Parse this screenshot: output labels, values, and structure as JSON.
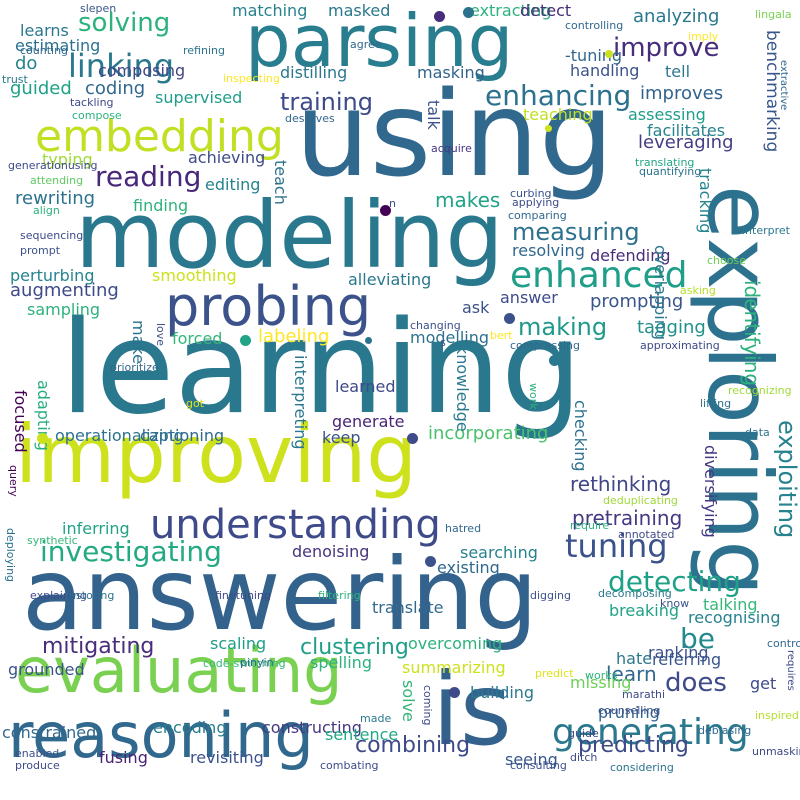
{
  "words": [
    {
      "text": "learning",
      "color": "#2a788e"
    },
    {
      "text": "using",
      "color": "#31688e"
    },
    {
      "text": "answering",
      "color": "#33638d"
    },
    {
      "text": "improving",
      "color": "#cde11d"
    },
    {
      "text": "exploring",
      "color": "#2c728e"
    },
    {
      "text": "modeling",
      "color": "#2a788e"
    },
    {
      "text": "parsing",
      "color": "#287d8e"
    },
    {
      "text": "is",
      "color": "#33638d"
    },
    {
      "text": "evaluating",
      "color": "#7ad151"
    },
    {
      "text": "reasoning",
      "color": "#31688e"
    },
    {
      "text": "probing",
      "color": "#3b528b"
    },
    {
      "text": "embedding",
      "color": "#c2df23"
    },
    {
      "text": "understanding",
      "color": "#3e4a89"
    },
    {
      "text": "enhanced",
      "color": "#1f9e89"
    },
    {
      "text": "investigating",
      "color": "#23a983"
    },
    {
      "text": "generating",
      "color": "#2a788e"
    },
    {
      "text": "tuning",
      "color": "#3b528b"
    },
    {
      "text": "linking",
      "color": "#2a788e"
    },
    {
      "text": "enhancing",
      "color": "#2c728e"
    },
    {
      "text": "reading",
      "color": "#482878"
    },
    {
      "text": "detecting",
      "color": "#1fa187"
    },
    {
      "text": "exploiting",
      "color": "#26828e"
    },
    {
      "text": "solving",
      "color": "#2db27d"
    },
    {
      "text": "improve",
      "color": "#472d7b"
    },
    {
      "text": "does",
      "color": "#3e4a89"
    },
    {
      "text": "be",
      "color": "#238a8d"
    },
    {
      "text": "making",
      "color": "#1f9a8a"
    },
    {
      "text": "measuring",
      "color": "#2c728e"
    },
    {
      "text": "training",
      "color": "#3e4a89"
    },
    {
      "text": "combining",
      "color": "#3e4a89"
    },
    {
      "text": "predicting",
      "color": "#3e4a89"
    },
    {
      "text": "mitigating",
      "color": "#472d7b"
    },
    {
      "text": "rethinking",
      "color": "#404688"
    },
    {
      "text": "pretraining",
      "color": "#443983"
    },
    {
      "text": "identifying",
      "color": "#2db27d"
    },
    {
      "text": "clustering",
      "color": "#1f9e89"
    },
    {
      "text": "benchmarking",
      "color": "#39568c"
    },
    {
      "text": "makes",
      "color": "#20a386"
    },
    {
      "text": "learn",
      "color": "#31688e"
    },
    {
      "text": "analyzing",
      "color": "#2a788e"
    },
    {
      "text": "improves",
      "color": "#33638d"
    },
    {
      "text": "leveraging",
      "color": "#433e85"
    },
    {
      "text": "guided",
      "color": "#1fa188"
    },
    {
      "text": "coding",
      "color": "#31688e"
    },
    {
      "text": "rewriting",
      "color": "#2c728e"
    },
    {
      "text": "augmenting",
      "color": "#3e4a89"
    },
    {
      "text": "prompting",
      "color": "#39568c"
    },
    {
      "text": "tagging",
      "color": "#21918c"
    },
    {
      "text": "denoising",
      "color": "#46337e"
    },
    {
      "text": "do",
      "color": "#26828e"
    },
    {
      "text": "teach",
      "color": "#2c728e"
    },
    {
      "text": "talk",
      "color": "#3b528b"
    },
    {
      "text": "assessing",
      "color": "#1f9e89"
    },
    {
      "text": "incorporating",
      "color": "#4ac16d"
    },
    {
      "text": "labeling",
      "color": "#fde725"
    },
    {
      "text": "adapting",
      "color": "#29af7f"
    },
    {
      "text": "masking",
      "color": "#33638d"
    },
    {
      "text": "distilling",
      "color": "#2a788e"
    },
    {
      "text": "supervised",
      "color": "#1f9e89"
    },
    {
      "text": "editing",
      "color": "#26828e"
    },
    {
      "text": "finding",
      "color": "#2db27d"
    },
    {
      "text": "ask",
      "color": "#3b528b"
    },
    {
      "text": "answer",
      "color": "#3e4a89"
    },
    {
      "text": "defending",
      "color": "#472d7b"
    },
    {
      "text": "overlapping",
      "color": "#2a788e"
    },
    {
      "text": "tracking",
      "color": "#25858e"
    },
    {
      "text": "breaking",
      "color": "#20a386"
    },
    {
      "text": "recognising",
      "color": "#26828e"
    },
    {
      "text": "scaling",
      "color": "#1f9e89"
    },
    {
      "text": "diversifying",
      "color": "#453882"
    },
    {
      "text": "referring",
      "color": "#39568c"
    },
    {
      "text": "get",
      "color": "#3e4a89"
    },
    {
      "text": "hate",
      "color": "#2a788e"
    },
    {
      "text": "summarizing",
      "color": "#cde11d"
    },
    {
      "text": "spelling",
      "color": "#2db27d"
    },
    {
      "text": "ranking",
      "color": "#3b528b"
    },
    {
      "text": "talking",
      "color": "#35b779"
    },
    {
      "text": "building",
      "color": "#2a788e"
    },
    {
      "text": "missing",
      "color": "#6ece58"
    },
    {
      "text": "pruning",
      "color": "#33638d"
    },
    {
      "text": "searching",
      "color": "#26828e"
    },
    {
      "text": "existing",
      "color": "#31688e"
    },
    {
      "text": "inferring",
      "color": "#20a386"
    },
    {
      "text": "solve",
      "color": "#35b779"
    },
    {
      "text": "fusing",
      "color": "#482475"
    },
    {
      "text": "revisiting",
      "color": "#3b528b"
    },
    {
      "text": "overcoming",
      "color": "#2db27d"
    },
    {
      "text": "constructing",
      "color": "#453882"
    },
    {
      "text": "sentence",
      "color": "#22a884"
    },
    {
      "text": "seeing",
      "color": "#39568c"
    },
    {
      "text": "encoding",
      "color": "#287d8e"
    },
    {
      "text": "constrained",
      "color": "#31688e"
    },
    {
      "text": "grounded",
      "color": "#3b528b"
    },
    {
      "text": "smoothing",
      "color": "#cde11d"
    },
    {
      "text": "alleviating",
      "color": "#2a788e"
    },
    {
      "text": "captioning",
      "color": "#31688e"
    },
    {
      "text": "operationalizing",
      "color": "#2c728e"
    },
    {
      "text": "sampling",
      "color": "#2db27d"
    },
    {
      "text": "perturbing",
      "color": "#25848e"
    },
    {
      "text": "focused",
      "color": "#440154"
    },
    {
      "text": "interpreting",
      "color": "#2a788e"
    },
    {
      "text": "knowledge",
      "color": "#2a788e"
    },
    {
      "text": "checking",
      "color": "#2c728e"
    },
    {
      "text": "modelling",
      "color": "#2c728e"
    },
    {
      "text": "generate",
      "color": "#482475"
    },
    {
      "text": "keep",
      "color": "#3b528b"
    },
    {
      "text": "learned",
      "color": "#3e4a89"
    },
    {
      "text": "make",
      "color": "#2c728e"
    },
    {
      "text": "forced",
      "color": "#35b779"
    },
    {
      "text": "-tuning",
      "color": "#31688e"
    },
    {
      "text": "tell",
      "color": "#2a788e"
    },
    {
      "text": "handling",
      "color": "#3b528b"
    },
    {
      "text": "teaching",
      "color": "#c2df23"
    },
    {
      "text": "facilitates",
      "color": "#25848e"
    },
    {
      "text": "resolving",
      "color": "#31688e"
    },
    {
      "text": "typing",
      "color": "#a0da39"
    },
    {
      "text": "achieving",
      "color": "#3e4a89"
    },
    {
      "text": "composing",
      "color": "#414487"
    },
    {
      "text": "estimating",
      "color": "#2c728e"
    },
    {
      "text": "learns",
      "color": "#2a788e"
    },
    {
      "text": "matching",
      "color": "#26828e"
    },
    {
      "text": "masked",
      "color": "#2a788e"
    },
    {
      "text": "extracting",
      "color": "#2db27d"
    },
    {
      "text": "detect",
      "color": "#472d7b"
    },
    {
      "text": "controlling",
      "color": "#31688e"
    },
    {
      "text": "lingala",
      "color": "#7ad151"
    },
    {
      "text": "slepen",
      "color": "#39568c"
    },
    {
      "text": "refining",
      "color": "#2c728e"
    },
    {
      "text": "counting",
      "color": "#31688e"
    },
    {
      "text": "trust",
      "color": "#2a788e"
    },
    {
      "text": "tackling",
      "color": "#3e4a89"
    },
    {
      "text": "inspecting",
      "color": "#fde725"
    },
    {
      "text": "compose",
      "color": "#2db27d"
    },
    {
      "text": "deserves",
      "color": "#31688e"
    },
    {
      "text": "generationusing",
      "color": "#3e4a89"
    },
    {
      "text": "attending",
      "color": "#5ec962"
    },
    {
      "text": "acquire",
      "color": "#453882"
    },
    {
      "text": "align",
      "color": "#2db27d"
    },
    {
      "text": "curbing",
      "color": "#3b528b"
    },
    {
      "text": "applying",
      "color": "#3e4a89"
    },
    {
      "text": "comparing",
      "color": "#31688e"
    },
    {
      "text": "translating",
      "color": "#22a884"
    },
    {
      "text": "quantifying",
      "color": "#2c728e"
    },
    {
      "text": "agree",
      "color": "#31688e"
    },
    {
      "text": "imply",
      "color": "#fde725"
    },
    {
      "text": "extractive",
      "color": "#31688e"
    },
    {
      "text": "sequencing",
      "color": "#3e4a89"
    },
    {
      "text": "prompt",
      "color": "#3b528b"
    },
    {
      "text": "interpret",
      "color": "#2a788e"
    },
    {
      "text": "choose",
      "color": "#6ece58"
    },
    {
      "text": "asking",
      "color": "#b5de2b"
    },
    {
      "text": "love",
      "color": "#3e4a89"
    },
    {
      "text": "changing",
      "color": "#3b528b"
    },
    {
      "text": "bert",
      "color": "#fde725"
    },
    {
      "text": "compressing",
      "color": "#31688e"
    },
    {
      "text": "approximating",
      "color": "#3e4a89"
    },
    {
      "text": "recognizing",
      "color": "#a0da39"
    },
    {
      "text": "lifting",
      "color": "#2c728e"
    },
    {
      "text": "work",
      "color": "#2db27d"
    },
    {
      "text": "got",
      "color": "#dde318"
    },
    {
      "text": "data",
      "color": "#2c728e"
    },
    {
      "text": "query",
      "color": "#440154"
    },
    {
      "text": "synthetic",
      "color": "#35b779"
    },
    {
      "text": "deduplicating",
      "color": "#9fda3a"
    },
    {
      "text": "annotated",
      "color": "#3e4a89"
    },
    {
      "text": "require",
      "color": "#2db27d"
    },
    {
      "text": "deploying",
      "color": "#2c728e"
    },
    {
      "text": "explaining",
      "color": "#3e4a89"
    },
    {
      "text": "restoring",
      "color": "#2c728e"
    },
    {
      "text": "finetuning",
      "color": "#3e4a89"
    },
    {
      "text": "filtering",
      "color": "#2db27d"
    },
    {
      "text": "hatred",
      "color": "#31688e"
    },
    {
      "text": "digging",
      "color": "#3b528b"
    },
    {
      "text": "decomposing",
      "color": "#2a788e"
    },
    {
      "text": "translate",
      "color": "#31688e"
    },
    {
      "text": "know",
      "color": "#3b528b"
    },
    {
      "text": "control",
      "color": "#31688e"
    },
    {
      "text": "requires",
      "color": "#3e4a89"
    },
    {
      "text": "code-switching",
      "color": "#35b779"
    },
    {
      "text": "pinyin",
      "color": "#31688e"
    },
    {
      "text": "predict",
      "color": "#dde318"
    },
    {
      "text": "works",
      "color": "#2db27d"
    },
    {
      "text": "marathi",
      "color": "#3e4a89"
    },
    {
      "text": "coming",
      "color": "#3e4a89"
    },
    {
      "text": "counselling",
      "color": "#3b528b"
    },
    {
      "text": "inspired",
      "color": "#b5de2b"
    },
    {
      "text": "debiasing",
      "color": "#31688e"
    },
    {
      "text": "guide",
      "color": "#3e4a89"
    },
    {
      "text": "unmasking",
      "color": "#3e4a89"
    },
    {
      "text": "ditch",
      "color": "#3e4a89"
    },
    {
      "text": "made",
      "color": "#2a788e"
    },
    {
      "text": "enabled",
      "color": "#3b528b"
    },
    {
      "text": "produce",
      "color": "#3e4a89"
    },
    {
      "text": "combating",
      "color": "#3e4a89"
    },
    {
      "text": "consulting",
      "color": "#3b528b"
    },
    {
      "text": "considering",
      "color": "#2c728e"
    },
    {
      "text": "prioritize",
      "color": "#31688e"
    },
    {
      "text": "s",
      "color": "#3b528b"
    },
    {
      "text": "n",
      "color": "#3e4a89"
    },
    {
      "text": "'s",
      "color": "#2c728e"
    }
  ],
  "dots": [
    {
      "color": "#472d7b"
    },
    {
      "color": "#2c728e"
    },
    {
      "color": "#cde11d"
    },
    {
      "color": "#3e4a89"
    },
    {
      "color": "#20a386"
    },
    {
      "color": "#3b528b"
    },
    {
      "color": "#3e4a89"
    },
    {
      "color": "#3b528b"
    },
    {
      "color": "#2a788e"
    },
    {
      "color": "#440154"
    },
    {
      "color": "#cde11d"
    },
    {
      "color": "#2c728e"
    },
    {
      "color": "#cde11d"
    }
  ]
}
